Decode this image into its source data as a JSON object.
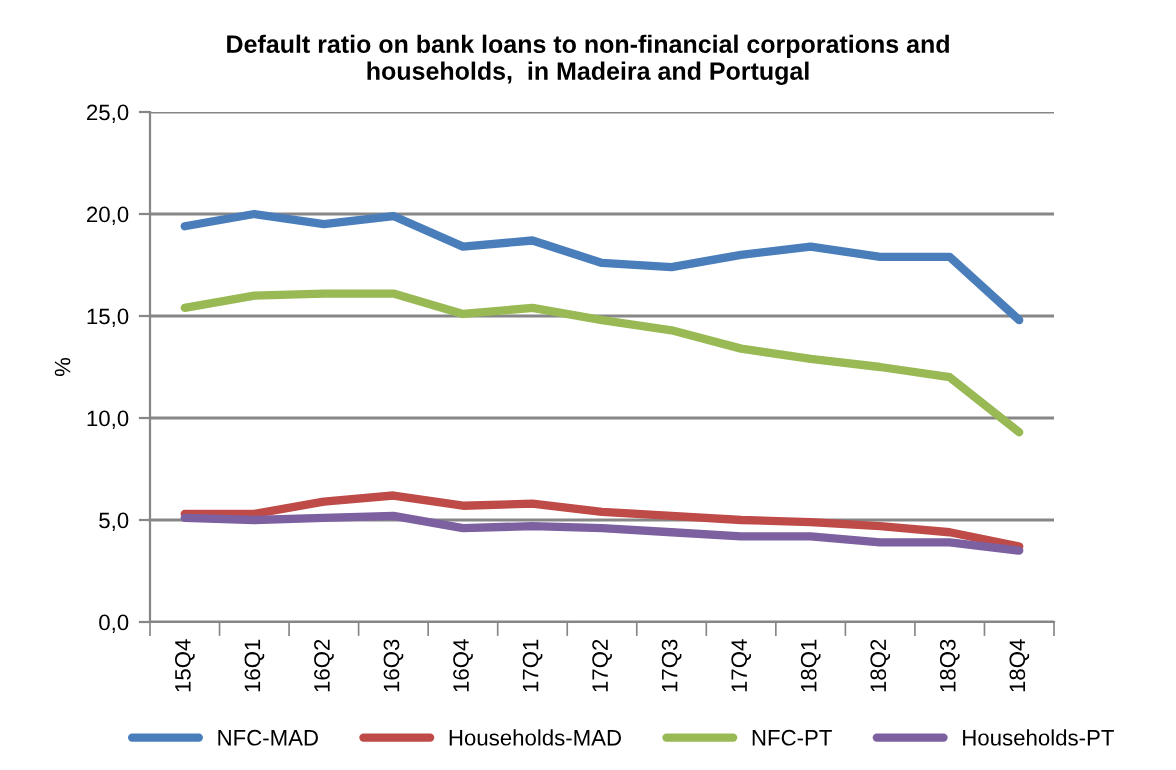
{
  "chart_data": {
    "type": "line",
    "title": "Default ratio on bank loans to non-financial corporations and\nhouseholds,  in Madeira and Portugal",
    "ylabel": "%",
    "categories": [
      "15Q4",
      "16Q1",
      "16Q2",
      "16Q3",
      "16Q4",
      "17Q1",
      "17Q2",
      "17Q3",
      "17Q4",
      "18Q1",
      "18Q2",
      "18Q3",
      "18Q4"
    ],
    "series": [
      {
        "name": "NFC-MAD",
        "color": "#4a7ebb",
        "values": [
          19.4,
          20.0,
          19.5,
          19.9,
          18.4,
          18.7,
          17.6,
          17.4,
          18.0,
          18.4,
          17.9,
          17.9,
          14.8
        ]
      },
      {
        "name": "Households-MAD",
        "color": "#be4b48",
        "values": [
          5.3,
          5.3,
          5.9,
          6.2,
          5.7,
          5.8,
          5.4,
          5.2,
          5.0,
          4.9,
          4.7,
          4.4,
          3.7
        ]
      },
      {
        "name": "NFC-PT",
        "color": "#98b954",
        "values": [
          15.4,
          16.0,
          16.1,
          16.1,
          15.1,
          15.4,
          14.8,
          14.3,
          13.4,
          12.9,
          12.5,
          12.0,
          9.3
        ]
      },
      {
        "name": "Households-PT",
        "color": "#7d60a0",
        "values": [
          5.1,
          5.0,
          5.1,
          5.2,
          4.6,
          4.7,
          4.6,
          4.4,
          4.2,
          4.2,
          3.9,
          3.9,
          3.5
        ]
      }
    ],
    "ylim": [
      0,
      25
    ],
    "yticks": [
      {
        "value": 0,
        "label": "0,0"
      },
      {
        "value": 5,
        "label": "5,0"
      },
      {
        "value": 10,
        "label": "10,0"
      },
      {
        "value": 15,
        "label": "15,0"
      },
      {
        "value": 20,
        "label": "20,0"
      },
      {
        "value": 25,
        "label": "25,0"
      }
    ],
    "grid": "y",
    "legend": "bottom",
    "marker": "none",
    "line_style": "solid"
  }
}
